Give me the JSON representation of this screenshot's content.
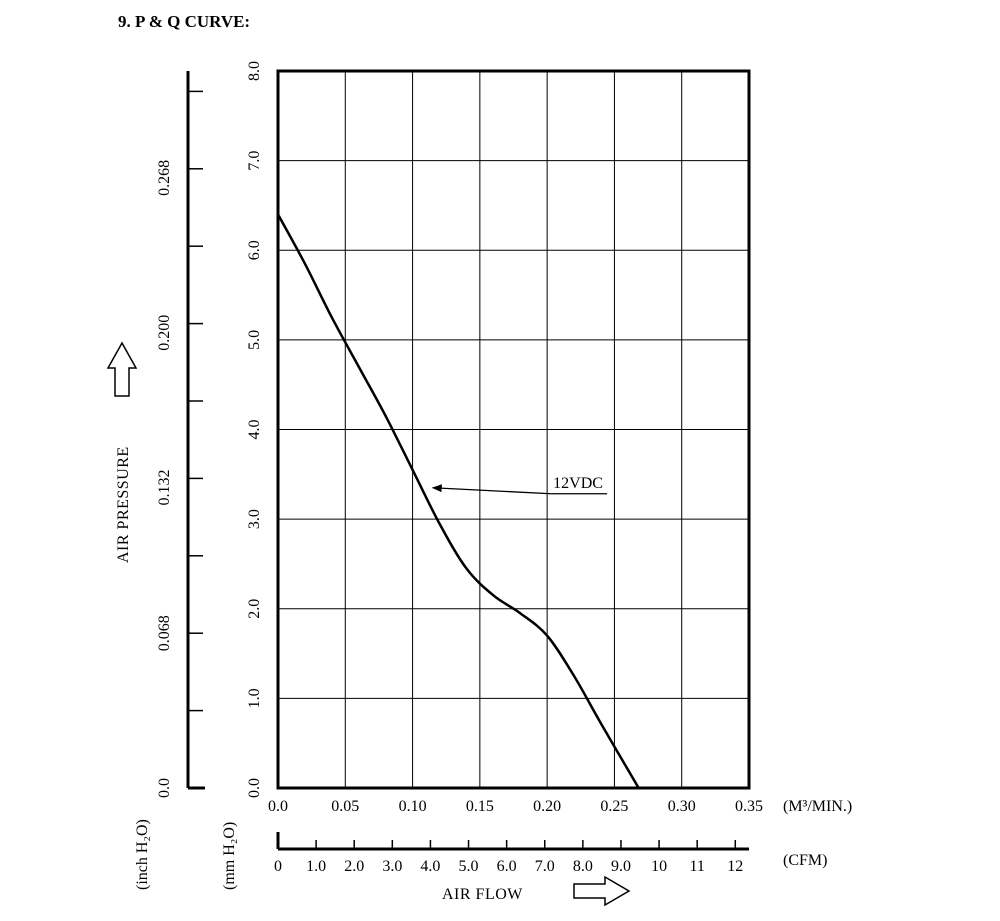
{
  "header": {
    "title": "9. P & Q CURVE:"
  },
  "chart_data": {
    "type": "line",
    "x_label": "AIR FLOW",
    "x_unit_primary": "(M³/MIN.)",
    "x_unit_secondary": "(CFM)",
    "y_label": "AIR PRESSURE",
    "y_unit_primary": "(mm H₂O)",
    "y_unit_secondary": "(inch H₂O)",
    "xlim": [
      0,
      0.35
    ],
    "ylim": [
      0,
      8
    ],
    "x_ticks": [
      "0.0",
      "0.05",
      "0.10",
      "0.15",
      "0.20",
      "0.25",
      "0.30",
      "0.35"
    ],
    "y_ticks": [
      "0.0",
      "1.0",
      "2.0",
      "3.0",
      "4.0",
      "5.0",
      "6.0",
      "7.0",
      "8.0"
    ],
    "cfm_ticks": [
      "0",
      "1.0",
      "2.0",
      "3.0",
      "4.0",
      "5.0",
      "6.0",
      "7.0",
      "8.0",
      "9.0",
      "10",
      "11",
      "12"
    ],
    "inch_ticks": [
      {
        "label": "0.0",
        "value": 0.0
      },
      {
        "label": "0.068",
        "value": 0.068
      },
      {
        "label": "0.132",
        "value": 0.132
      },
      {
        "label": "0.200",
        "value": 0.2
      },
      {
        "label": "0.268",
        "value": 0.268
      }
    ],
    "grid": true,
    "series": [
      {
        "name": "12VDC",
        "points": [
          [
            0.0,
            6.4
          ],
          [
            0.02,
            5.85
          ],
          [
            0.04,
            5.25
          ],
          [
            0.06,
            4.7
          ],
          [
            0.08,
            4.15
          ],
          [
            0.1,
            3.55
          ],
          [
            0.12,
            2.95
          ],
          [
            0.14,
            2.45
          ],
          [
            0.16,
            2.15
          ],
          [
            0.18,
            1.95
          ],
          [
            0.2,
            1.7
          ],
          [
            0.22,
            1.25
          ],
          [
            0.24,
            0.72
          ],
          [
            0.268,
            0.0
          ]
        ]
      }
    ],
    "annotation": {
      "text": "12VDC",
      "x": 0.2,
      "y": 3.35
    }
  }
}
